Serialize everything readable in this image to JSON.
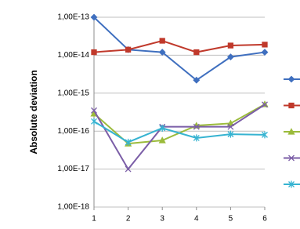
{
  "chart_data": {
    "type": "line",
    "y_label": "Absolute deviation",
    "log_y": true,
    "grid": true,
    "legend": "right",
    "x": [
      1,
      2,
      3,
      4,
      5,
      6
    ],
    "xlim": [
      1,
      6
    ],
    "xticks": [
      1,
      2,
      3,
      4,
      5,
      6
    ],
    "ylim": [
      1e-18,
      1e-13
    ],
    "yticks": [
      {
        "value": 1e-18,
        "label": "1,00E-18"
      },
      {
        "value": 1e-17,
        "label": "1,00E-17"
      },
      {
        "value": 1e-16,
        "label": "1,00E-16"
      },
      {
        "value": 1e-15,
        "label": "1,00E-15"
      },
      {
        "value": 1e-14,
        "label": "1,00E-14"
      },
      {
        "value": 1e-13,
        "label": "1,00E-13"
      }
    ],
    "series": [
      {
        "color": "#3f6fbf",
        "marker": "diamond",
        "values": [
          1e-13,
          1.4e-14,
          1.2e-14,
          2.2e-15,
          9e-15,
          1.2e-14
        ]
      },
      {
        "color": "#c0392b",
        "marker": "square",
        "values": [
          1.2e-14,
          1.4e-14,
          2.4e-14,
          1.2e-14,
          1.8e-14,
          1.9e-14
        ]
      },
      {
        "color": "#9bbb3b",
        "marker": "triangle",
        "values": [
          2.9e-16,
          4.7e-17,
          5.7e-17,
          1.4e-16,
          1.6e-16,
          5.1e-16
        ]
      },
      {
        "color": "#7b5ea7",
        "marker": "x",
        "values": [
          3.5e-16,
          1e-17,
          1.3e-16,
          1.3e-16,
          1.3e-16,
          5e-16
        ]
      },
      {
        "color": "#36b3d1",
        "marker": "star",
        "values": [
          1.8e-16,
          5.1e-17,
          1.2e-16,
          6.6e-17,
          8.3e-17,
          8e-17
        ]
      }
    ]
  }
}
